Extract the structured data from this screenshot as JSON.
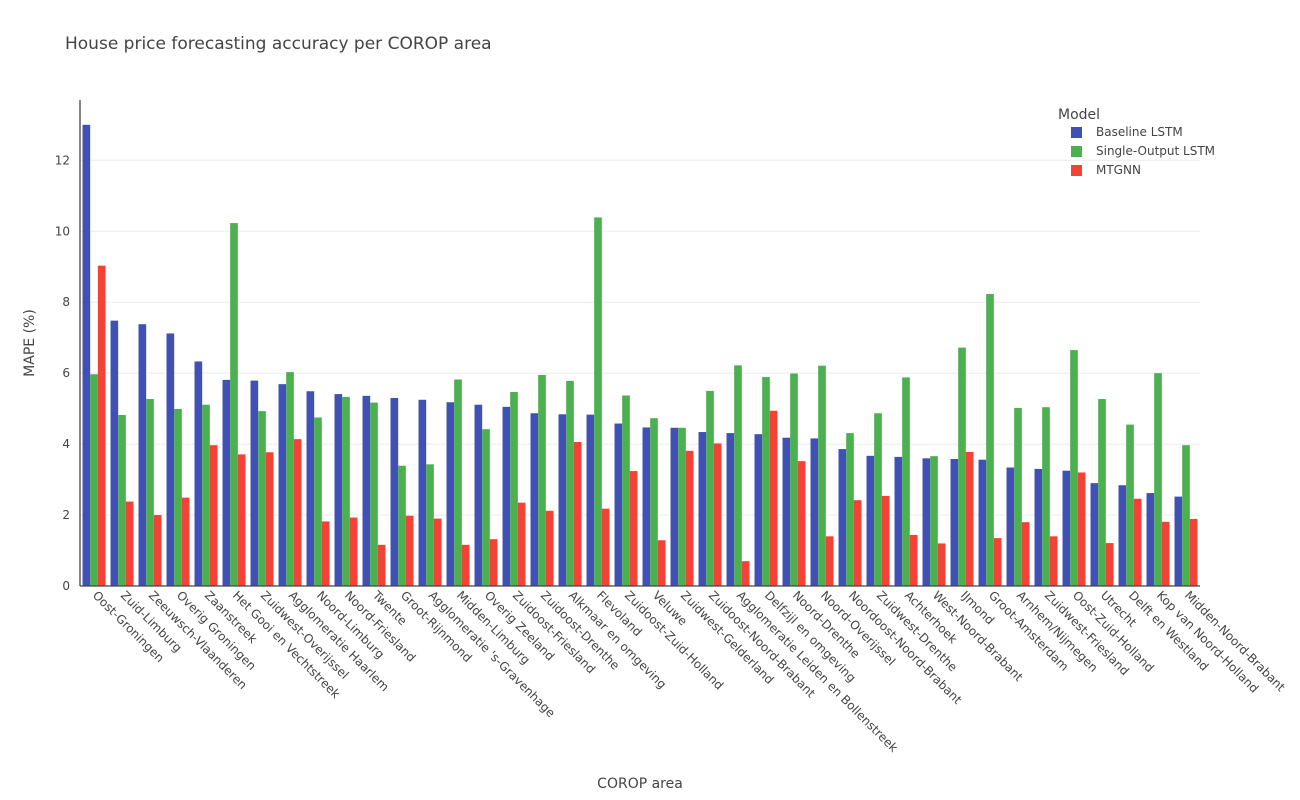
{
  "chart_data": {
    "type": "bar",
    "title": "House price forecasting accuracy per COROP area",
    "xlabel": "COROP area",
    "ylabel": "MAPE (%)",
    "ylim": [
      0,
      13.7
    ],
    "yticks": [
      0,
      2,
      4,
      6,
      8,
      10,
      12
    ],
    "grid": true,
    "legend_title": "Model",
    "legend_position": "top-right",
    "categories": [
      "Oost-Groningen",
      "Zuid-Limburg",
      "Zeeuwsch-Vlaanderen",
      "Overig Groningen",
      "Zaanstreek",
      "Het Gooi en Vechtstreek",
      "Zuidwest-Overijssel",
      "Agglomeratie Haarlem",
      "Noord-Limburg",
      "Noord-Friesland",
      "Twente",
      "Groot-Rijnmond",
      "Agglomeratie 's-Gravenhage",
      "Midden-Limburg",
      "Overig Zeeland",
      "Zuidoost-Friesland",
      "Zuidoost-Drenthe",
      "Alkmaar en omgeving",
      "Flevoland",
      "Zuidoost-Zuid-Holland",
      "Veluwe",
      "Zuidwest-Gelderland",
      "Zuidoost-Noord-Brabant",
      "Agglomeratie Leiden en Bollenstreek",
      "Delfzijl en omgeving",
      "Noord-Drenthe",
      "Noord-Overijssel",
      "Noordoost-Noord-Brabant",
      "Zuidwest-Drenthe",
      "Achterhoek",
      "West-Noord-Brabant",
      "IJmond",
      "Groot-Amsterdam",
      "Arnhem/Nijmegen",
      "Zuidwest-Friesland",
      "Oost-Zuid-Holland",
      "Utrecht",
      "Delft en Westland",
      "Kop van Noord-Holland",
      "Midden-Noord-Brabant"
    ],
    "series": [
      {
        "name": "Baseline LSTM",
        "color": "#3f51b5",
        "values": [
          13.0,
          7.48,
          7.38,
          7.12,
          6.33,
          5.81,
          5.79,
          5.69,
          5.49,
          5.41,
          5.36,
          5.3,
          5.25,
          5.18,
          5.11,
          5.05,
          4.87,
          4.84,
          4.83,
          4.58,
          4.47,
          4.46,
          4.34,
          4.31,
          4.28,
          4.18,
          4.16,
          3.86,
          3.67,
          3.64,
          3.6,
          3.58,
          3.56,
          3.34,
          3.3,
          3.25,
          2.9,
          2.84,
          2.62,
          2.52
        ]
      },
      {
        "name": "Single-Output LSTM",
        "color": "#4caf50",
        "values": [
          5.97,
          4.82,
          5.27,
          4.99,
          5.11,
          10.23,
          4.93,
          6.03,
          4.75,
          5.33,
          5.17,
          3.39,
          3.43,
          5.82,
          4.42,
          5.47,
          5.95,
          5.78,
          10.39,
          5.37,
          4.73,
          4.46,
          5.5,
          6.22,
          5.89,
          5.99,
          6.21,
          4.31,
          4.87,
          5.88,
          3.66,
          6.72,
          8.23,
          5.02,
          5.04,
          6.65,
          5.27,
          4.55,
          6.0,
          3.97
        ]
      },
      {
        "name": "MTGNN",
        "color": "#f44336",
        "values": [
          9.03,
          2.38,
          2.0,
          2.49,
          3.97,
          3.71,
          3.77,
          4.14,
          1.82,
          1.93,
          1.16,
          1.98,
          1.9,
          1.16,
          1.32,
          2.35,
          2.12,
          4.06,
          2.18,
          3.24,
          1.29,
          3.81,
          4.02,
          0.7,
          4.94,
          3.52,
          1.4,
          2.42,
          2.54,
          1.44,
          1.2,
          3.78,
          1.35,
          1.8,
          1.4,
          3.2,
          1.21,
          2.46,
          1.81,
          1.89
        ]
      }
    ]
  }
}
